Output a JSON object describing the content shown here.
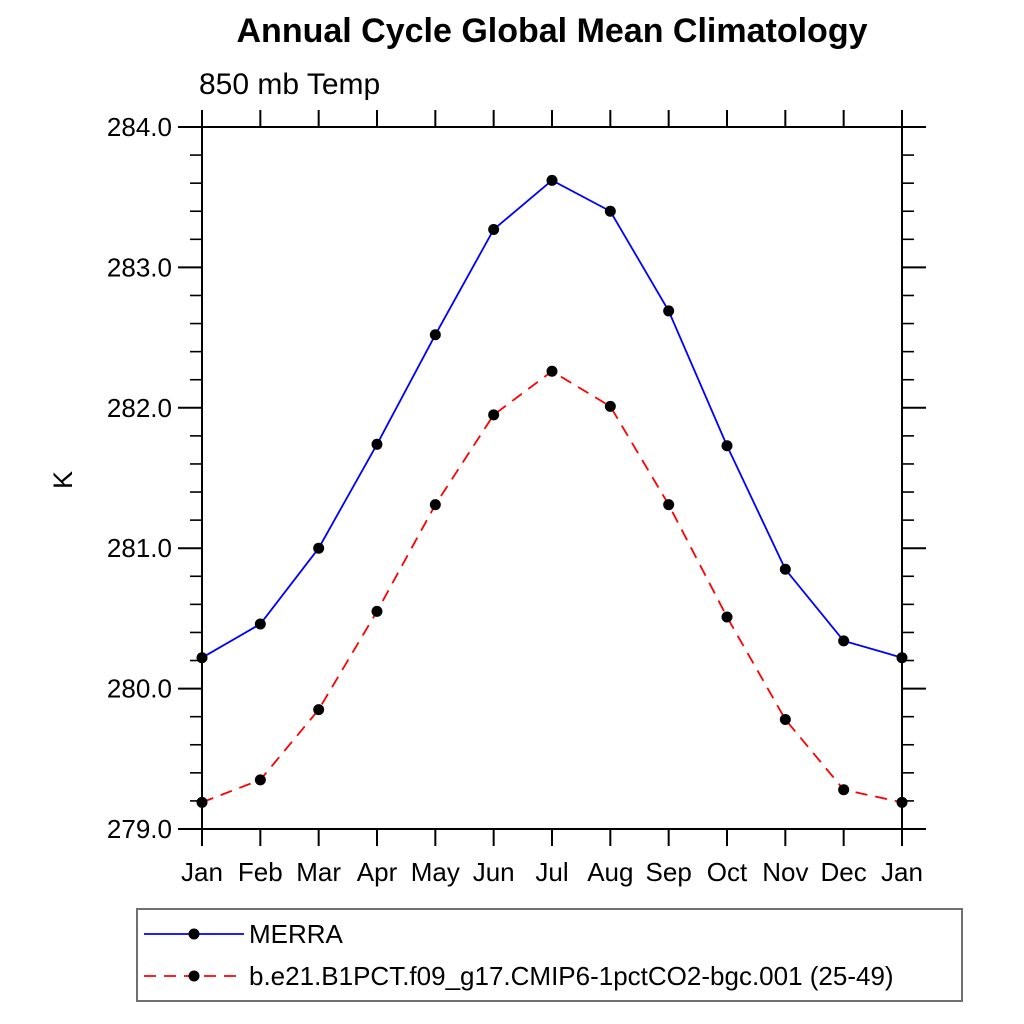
{
  "chart_data": {
    "type": "line",
    "title": "Annual Cycle Global Mean Climatology",
    "subtitle": "850 mb Temp",
    "xlabel": "",
    "ylabel": "K",
    "x_categories": [
      "Jan",
      "Feb",
      "Mar",
      "Apr",
      "May",
      "Jun",
      "Jul",
      "Aug",
      "Sep",
      "Oct",
      "Nov",
      "Dec",
      "Jan"
    ],
    "ylim": [
      279.0,
      284.0
    ],
    "ytick_major_interval": 1.0,
    "ytick_minor_interval": 0.2,
    "ytick_labels": [
      "279.0",
      "280.0",
      "281.0",
      "282.0",
      "283.0",
      "284.0"
    ],
    "grid": false,
    "axis_color": "#000000",
    "legend_position": "bottom-left",
    "series": [
      {
        "name": "MERRA",
        "color": "#0000ff",
        "line_style": "solid",
        "marker": "filled-circle",
        "marker_color": "#000000",
        "values": [
          280.22,
          280.46,
          281.0,
          281.74,
          282.52,
          283.27,
          283.62,
          283.4,
          282.69,
          281.73,
          280.85,
          280.34,
          280.22
        ]
      },
      {
        "name": "b.e21.B1PCT.f09_g17.CMIP6-1pctCO2-bgc.001 (25-49)",
        "color": "#ff0000",
        "line_style": "dashed",
        "marker": "filled-circle",
        "marker_color": "#000000",
        "values": [
          279.19,
          279.35,
          279.85,
          280.55,
          281.31,
          281.95,
          282.26,
          282.01,
          281.31,
          280.51,
          279.78,
          279.28,
          279.19
        ]
      }
    ]
  }
}
